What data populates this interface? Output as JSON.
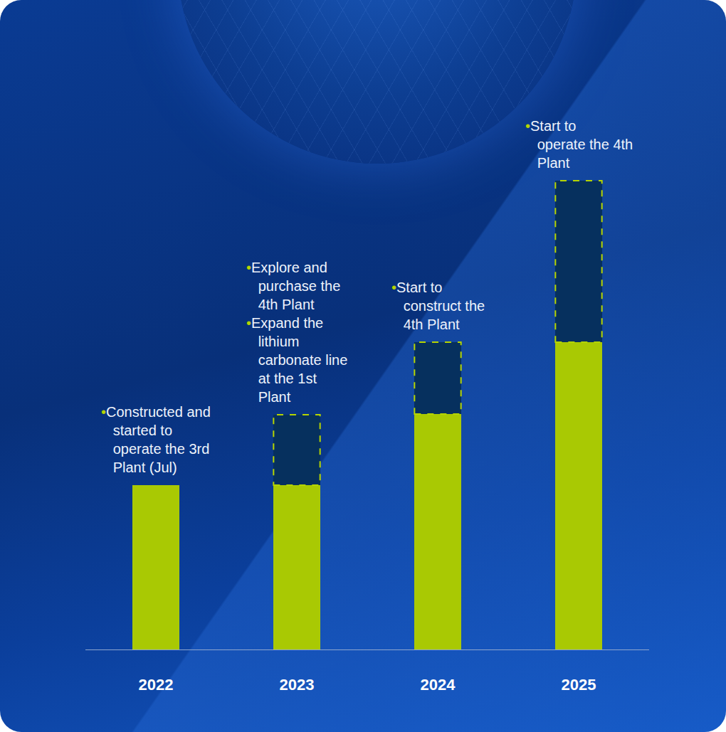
{
  "chart_data": {
    "type": "bar",
    "stacked": true,
    "categories": [
      "2022",
      "2023",
      "2024",
      "2025"
    ],
    "series": [
      {
        "color": "#a9c903",
        "values": [
          231,
          231,
          331,
          432
        ]
      },
      {
        "color": "#06305e",
        "line_style": "dashed",
        "values": [
          null,
          99,
          101,
          227
        ]
      }
    ],
    "ylim": [
      0,
      700
    ],
    "grid": false,
    "tick_labels": "x",
    "bullet": "•",
    "annotations": [
      [
        "Constructed and started to operate the 3rd Plant (Jul)"
      ],
      [
        "Explore and purchase the 4th Plant",
        "Expand the lithium carbonate line at the 1st Plant"
      ],
      [
        "Start to construct the 4th Plant"
      ],
      [
        "Start to operate the 4th Plant"
      ]
    ]
  }
}
